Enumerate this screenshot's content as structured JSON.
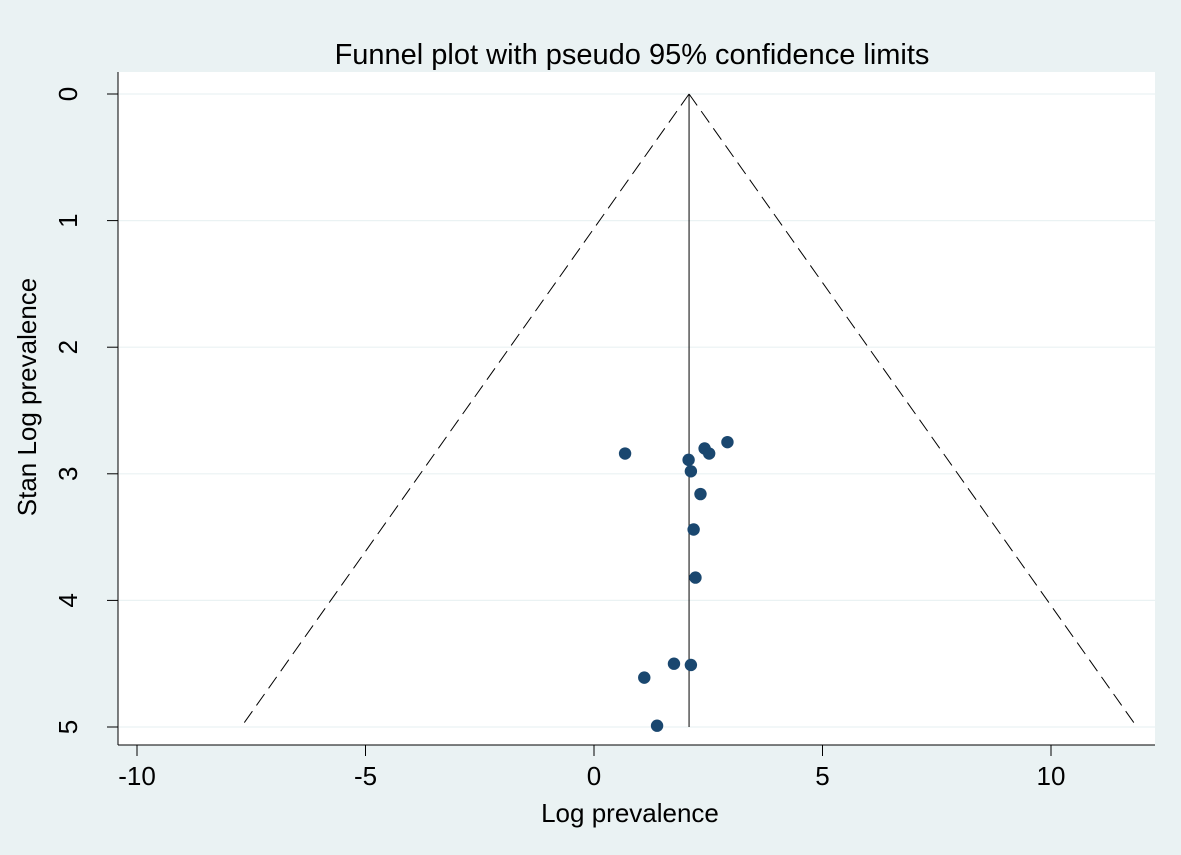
{
  "chart_data": {
    "type": "scatter",
    "title": "Funnel plot with pseudo 95% confidence limits",
    "xlabel": "Log prevalence",
    "ylabel": "Stan Log prevalence",
    "xlim": [
      -10.4,
      12.3
    ],
    "ylim": [
      0,
      5
    ],
    "y_reversed": true,
    "x_ticks": [
      -10,
      -5,
      0,
      5,
      10
    ],
    "y_ticks": [
      0,
      1,
      2,
      3,
      4,
      5
    ],
    "x_tick_labels": [
      "-10",
      "-5",
      "0",
      "5",
      "10"
    ],
    "y_tick_labels": [
      "0",
      "1",
      "2",
      "3",
      "4",
      "5"
    ],
    "grid": true,
    "pooled_estimate": 2.08,
    "ci_multiplier": 1.96,
    "points": [
      {
        "x": 0.68,
        "y": 2.84
      },
      {
        "x": 2.07,
        "y": 2.89
      },
      {
        "x": 2.12,
        "y": 2.98
      },
      {
        "x": 2.42,
        "y": 2.8
      },
      {
        "x": 2.52,
        "y": 2.84
      },
      {
        "x": 2.92,
        "y": 2.75
      },
      {
        "x": 2.33,
        "y": 3.16
      },
      {
        "x": 2.18,
        "y": 3.44
      },
      {
        "x": 2.22,
        "y": 3.82
      },
      {
        "x": 1.75,
        "y": 4.5
      },
      {
        "x": 2.12,
        "y": 4.51
      },
      {
        "x": 1.1,
        "y": 4.61
      },
      {
        "x": 1.38,
        "y": 4.99
      }
    ],
    "colors": {
      "background": "#eaf2f3",
      "plot_area": "#ffffff",
      "marker": "#1a476f",
      "grid": "#eaf2f3",
      "line": "#000000"
    }
  }
}
